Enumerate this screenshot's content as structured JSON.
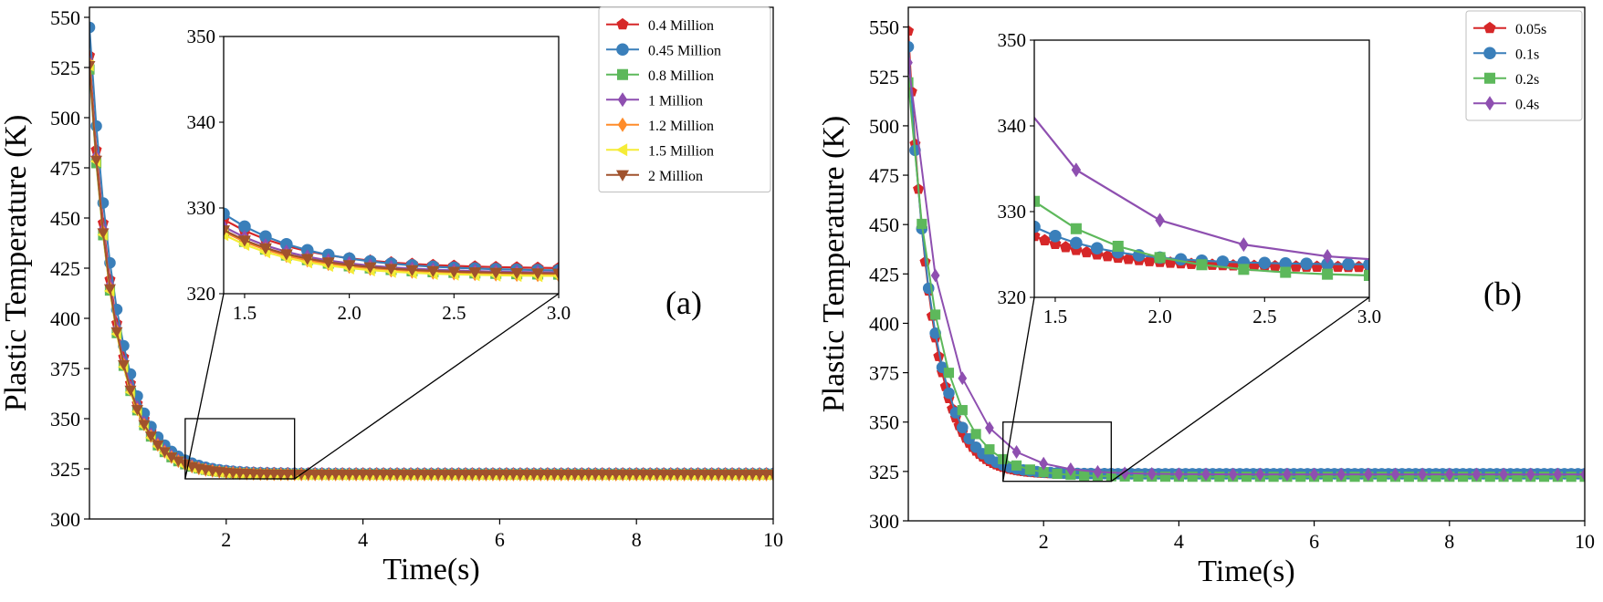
{
  "chart_data": [
    {
      "panel": "(a)",
      "type": "line",
      "xlabel": "Time(s)",
      "ylabel": "Plastic Temperature (K)",
      "xlim": [
        0,
        10
      ],
      "ylim": [
        300,
        555
      ],
      "xticks": [
        2,
        4,
        6,
        8,
        10
      ],
      "xtick_labels": [
        "2",
        "4",
        "6",
        "8",
        "10"
      ],
      "yticks": [
        300,
        325,
        350,
        375,
        400,
        425,
        450,
        475,
        500,
        525,
        550
      ],
      "ytick_labels": [
        "300",
        "325",
        "350",
        "375",
        "400",
        "425",
        "450",
        "475",
        "500",
        "525",
        "550"
      ],
      "legend_position": "top-right",
      "zoom_box": {
        "x": [
          1.4,
          3.0
        ],
        "y": [
          320,
          350
        ]
      },
      "inset": {
        "xlim": [
          1.4,
          3.0
        ],
        "ylim": [
          320,
          350
        ],
        "xticks": [
          1.5,
          2.0,
          2.5,
          3.0
        ],
        "xtick_labels": [
          "1.5",
          "2.0",
          "2.5",
          "3.0"
        ],
        "yticks": [
          320,
          330,
          340,
          350
        ],
        "ytick_labels": [
          "320",
          "330",
          "340",
          "350"
        ]
      },
      "model": {
        "t_step": 0.1,
        "t_end": 10
      },
      "series": [
        {
          "name": "0.4 Million",
          "color": "#d62728",
          "marker": "pentagon",
          "start": 531,
          "asymptote": 322.9,
          "tau": 0.39
        },
        {
          "name": "0.45 Million",
          "color": "#3a7fba",
          "marker": "circle",
          "start": 545,
          "asymptote": 322.6,
          "tau": 0.4
        },
        {
          "name": "0.8 Million",
          "color": "#5db85b",
          "marker": "square",
          "start": 524,
          "asymptote": 322.2,
          "tau": 0.38
        },
        {
          "name": "1 Million",
          "color": "#8e4fb0",
          "marker": "diamond",
          "start": 528,
          "asymptote": 322.4,
          "tau": 0.385
        },
        {
          "name": "1.2 Million",
          "color": "#ff8c2a",
          "marker": "diamond",
          "start": 527,
          "asymptote": 322.1,
          "tau": 0.38
        },
        {
          "name": "1.5 Million",
          "color": "#f5ec37",
          "marker": "triangle-left",
          "start": 526,
          "asymptote": 322.0,
          "tau": 0.375
        },
        {
          "name": "2 Million",
          "color": "#a0522d",
          "marker": "triangle-down",
          "start": 526,
          "asymptote": 322.3,
          "tau": 0.38
        }
      ],
      "label": "(a)"
    },
    {
      "panel": "(b)",
      "type": "line",
      "xlabel": "Time(s)",
      "ylabel": "Plastic Temperature (K)",
      "xlim": [
        0,
        10
      ],
      "ylim": [
        300,
        560
      ],
      "xticks": [
        2,
        4,
        6,
        8,
        10
      ],
      "xtick_labels": [
        "2",
        "4",
        "6",
        "8",
        "10"
      ],
      "yticks": [
        300,
        325,
        350,
        375,
        400,
        425,
        450,
        475,
        500,
        525,
        550
      ],
      "ytick_labels": [
        "300",
        "325",
        "350",
        "375",
        "400",
        "425",
        "450",
        "475",
        "500",
        "525",
        "550"
      ],
      "legend_position": "top-right",
      "zoom_box": {
        "x": [
          1.4,
          3.0
        ],
        "y": [
          320,
          350
        ]
      },
      "inset": {
        "xlim": [
          1.4,
          3.0
        ],
        "ylim": [
          320,
          350
        ],
        "xticks": [
          1.5,
          2.0,
          2.5,
          3.0
        ],
        "xtick_labels": [
          "1.5",
          "2.0",
          "2.5",
          "3.0"
        ],
        "yticks": [
          320,
          330,
          340,
          350
        ],
        "ytick_labels": [
          "320",
          "330",
          "340",
          "350"
        ]
      },
      "model": {
        "t_end": 10
      },
      "series": [
        {
          "name": "0.05s",
          "color": "#d62728",
          "marker": "pentagon",
          "start": 548,
          "asymptote": 323.5,
          "tau": 0.34,
          "t_step": 0.05
        },
        {
          "name": "0.1s",
          "color": "#3a7fba",
          "marker": "circle",
          "start": 540,
          "asymptote": 323.8,
          "tau": 0.36,
          "t_step": 0.1
        },
        {
          "name": "0.2s",
          "color": "#5db85b",
          "marker": "square",
          "start": 522,
          "asymptote": 322.3,
          "tau": 0.45,
          "t_step": 0.2
        },
        {
          "name": "0.4s",
          "color": "#8e4fb0",
          "marker": "diamond",
          "start": 532,
          "asymptote": 323.5,
          "tau": 0.55,
          "t_step": 0.4
        }
      ],
      "label": "(b)"
    }
  ]
}
